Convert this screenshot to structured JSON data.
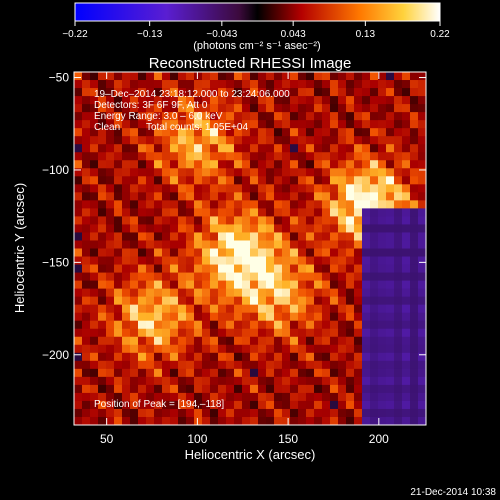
{
  "chart_data": {
    "type": "heatmap",
    "title": "Reconstructed RHESSI Image",
    "xlabel": "Heliocentric X (arcsec)",
    "ylabel": "Heliocentric Y (arcsec)",
    "xlim": [
      32,
      226
    ],
    "ylim": [
      -238,
      -47
    ],
    "x_ticks": [
      50,
      100,
      150,
      200
    ],
    "y_ticks": [
      -50,
      -100,
      -150,
      -200
    ],
    "x_tick_labels": [
      "50",
      "100",
      "150",
      "200"
    ],
    "y_tick_labels": [
      "−50",
      "−100",
      "−150",
      "−200"
    ],
    "colorbar": {
      "range": [
        -0.22,
        0.22
      ],
      "ticks": [
        -0.22,
        -0.13,
        -0.043,
        0.043,
        0.13,
        0.22
      ],
      "tick_labels": [
        "−0.22",
        "−0.13",
        "−0.043",
        "0.043",
        "0.13",
        "0.22"
      ],
      "units": "(photons cm⁻² s⁻¹ asec⁻²)",
      "colormap": "blue-purple-red-yellow-white"
    },
    "annotations": {
      "line1": "19–Dec–2014 23:18:12.000 to 23:24:06.000",
      "line2": "Detectors: 3F 6F 9F, Att 0",
      "line3": "Energy Range: 3.0 – 6.0 keV",
      "line4_a": "Clean",
      "line4_b": "Total counts: 1.05E+04",
      "peak": "Position of Peak = [194,–118]"
    },
    "peak_position": [
      194,
      -118
    ],
    "bright_sources": [
      {
        "x": 194,
        "y": -118,
        "relative_intensity": 1.0
      },
      {
        "x": 122,
        "y": -146,
        "relative_intensity": 0.95
      },
      {
        "x": 75,
        "y": -180,
        "relative_intensity": 0.7
      },
      {
        "x": 145,
        "y": -168,
        "relative_intensity": 0.6
      },
      {
        "x": 100,
        "y": -85,
        "relative_intensity": 0.65
      }
    ],
    "negative_region": {
      "x_range": [
        192,
        226
      ],
      "y_range": [
        -238,
        -120
      ]
    }
  },
  "footer": {
    "timestamp": "21-Dec-2014 10:38"
  },
  "colors": {
    "background": "#000000",
    "text": "#ffffff"
  }
}
